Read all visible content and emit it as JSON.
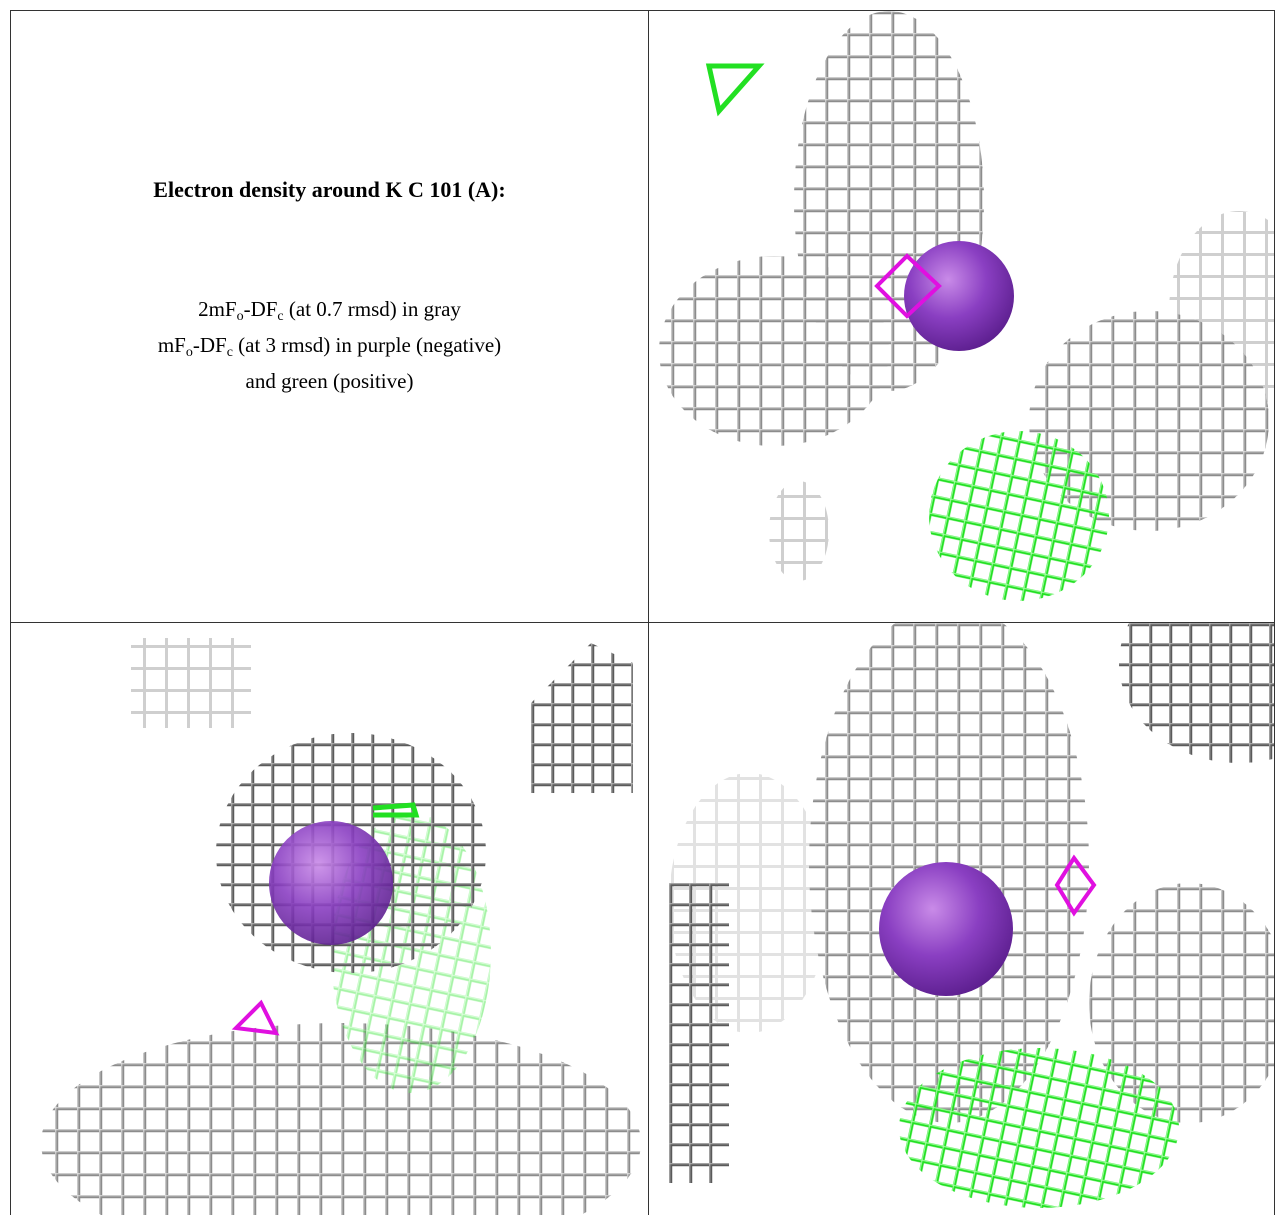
{
  "title": "Electron density around K C 101 (A):",
  "caption": {
    "lines": [
      [
        "2mF",
        {
          "sub": "o"
        },
        "-DF",
        {
          "sub": "c"
        },
        " (at 0.7 rmsd) in gray"
      ],
      [
        "mF",
        {
          "sub": "o"
        },
        "-DF",
        {
          "sub": "c"
        },
        " (at 3 rmsd) in purple (negative)"
      ],
      [
        "and green (positive)"
      ]
    ]
  }
}
